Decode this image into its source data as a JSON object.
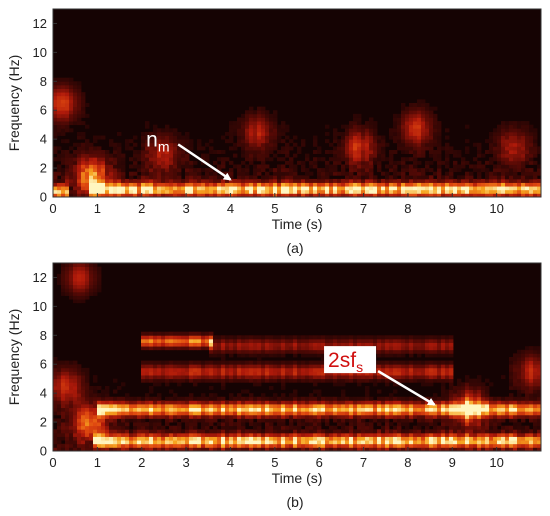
{
  "figure": {
    "caption_a": "(a)",
    "caption_b": "(b)"
  },
  "colors": {
    "background": "#150303",
    "colormap": [
      "#150303",
      "#5a0a05",
      "#b01a0a",
      "#e04a10",
      "#f7a520",
      "#fff6c0"
    ],
    "arrow": "#ffffff",
    "callout_text_a": "#ffffff",
    "callout_text_b": "#d01010",
    "callout_box_b": "#ffffff"
  },
  "chart_data": [
    {
      "type": "heatmap",
      "panel": "a",
      "xlabel": "Time (s)",
      "ylabel": "Frequency (Hz)",
      "xlim": [
        0,
        11
      ],
      "ylim": [
        0,
        13
      ],
      "xticks": [
        0,
        1,
        2,
        3,
        4,
        5,
        6,
        7,
        8,
        9,
        10
      ],
      "yticks": [
        0,
        2,
        4,
        6,
        8,
        10,
        12
      ],
      "colormap": "hot",
      "bands": [
        {
          "freq": 0.55,
          "width": 0.45,
          "intensity": 0.95,
          "t_start": 0.8,
          "t_end": 11
        },
        {
          "freq": 0.4,
          "width": 0.5,
          "intensity": 0.8,
          "t_start": 0.0,
          "t_end": 0.4
        }
      ],
      "features": [
        {
          "t": 0.2,
          "f": 6.5,
          "intensity": 0.55
        },
        {
          "t": 0.9,
          "f": 1.5,
          "intensity": 0.75
        },
        {
          "t": 2.5,
          "f": 3.0,
          "intensity": 0.45
        },
        {
          "t": 4.6,
          "f": 4.5,
          "intensity": 0.4
        },
        {
          "t": 6.9,
          "f": 3.5,
          "intensity": 0.45
        },
        {
          "t": 8.2,
          "f": 4.8,
          "intensity": 0.45
        },
        {
          "t": 10.4,
          "f": 3.5,
          "intensity": 0.4
        }
      ],
      "annotations": [
        {
          "base": "n",
          "sub": "m",
          "text_t": 2.1,
          "text_f": 3.5,
          "arrow_to_t": 4.0,
          "arrow_to_f": 1.2
        }
      ]
    },
    {
      "type": "heatmap",
      "panel": "b",
      "xlabel": "Time (s)",
      "ylabel": "Frequency (Hz)",
      "xlim": [
        0,
        11
      ],
      "ylim": [
        0,
        13
      ],
      "xticks": [
        0,
        1,
        2,
        3,
        4,
        5,
        6,
        7,
        8,
        9,
        10
      ],
      "yticks": [
        0,
        2,
        4,
        6,
        8,
        10,
        12
      ],
      "colormap": "hot",
      "bands": [
        {
          "freq": 0.7,
          "width": 0.45,
          "intensity": 0.9,
          "t_start": 0.9,
          "t_end": 11
        },
        {
          "freq": 2.9,
          "width": 0.45,
          "intensity": 0.9,
          "t_start": 1.0,
          "t_end": 11
        },
        {
          "freq": 7.6,
          "width": 0.4,
          "intensity": 0.75,
          "t_start": 2.0,
          "t_end": 3.6
        },
        {
          "freq": 5.5,
          "width": 0.5,
          "intensity": 0.45,
          "t_start": 2.0,
          "t_end": 9.0
        },
        {
          "freq": 7.3,
          "width": 0.5,
          "intensity": 0.35,
          "t_start": 3.5,
          "t_end": 9.0
        }
      ],
      "features": [
        {
          "t": 0.8,
          "f": 2.0,
          "intensity": 0.7
        },
        {
          "t": 0.3,
          "f": 4.5,
          "intensity": 0.5
        },
        {
          "t": 0.6,
          "f": 12.0,
          "intensity": 0.45
        },
        {
          "t": 9.4,
          "f": 3.0,
          "intensity": 0.7
        },
        {
          "t": 10.8,
          "f": 5.5,
          "intensity": 0.5
        }
      ],
      "annotations": [
        {
          "base": "2sf",
          "sub": "s",
          "text_t": 6.2,
          "text_f": 5.8,
          "arrow_to_t": 8.6,
          "arrow_to_f": 3.2
        }
      ]
    }
  ]
}
